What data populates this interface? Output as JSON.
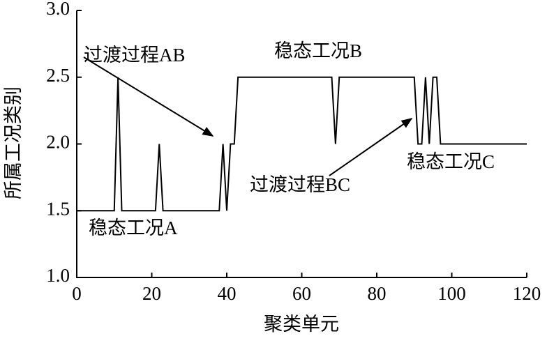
{
  "chart_data": {
    "type": "line",
    "xlabel": "聚类单元",
    "ylabel": "所属工况类别",
    "x": [
      0,
      10,
      11,
      12,
      21,
      22,
      23,
      38,
      39,
      40,
      41,
      42,
      43,
      68,
      69,
      70,
      90,
      91,
      92,
      93,
      94,
      95,
      96,
      97,
      120
    ],
    "series": [
      {
        "color": "#000000",
        "values": [
          1.5,
          1.5,
          2.5,
          1.5,
          1.5,
          2.0,
          1.5,
          1.5,
          2.0,
          1.5,
          2.0,
          2.0,
          2.5,
          2.5,
          2.0,
          2.5,
          2.5,
          2.0,
          2.0,
          2.5,
          2.0,
          2.5,
          2.5,
          2.0,
          2.0
        ]
      }
    ],
    "xlim": [
      0,
      120
    ],
    "xticks": [
      0,
      20,
      40,
      60,
      80,
      100,
      120
    ],
    "ylim": [
      1,
      3
    ],
    "yticks": [
      {
        "value": 1,
        "label": "1.0"
      },
      {
        "value": 1.5,
        "label": "1.5"
      },
      {
        "value": 2,
        "label": "2.0"
      },
      {
        "value": 2.5,
        "label": "2.5"
      },
      {
        "value": 3,
        "label": "3.0"
      }
    ],
    "annotations": [
      "稳态工况A",
      "过渡过程AB",
      "稳态工况B",
      "过渡过程BC",
      "稳态工况C"
    ]
  }
}
